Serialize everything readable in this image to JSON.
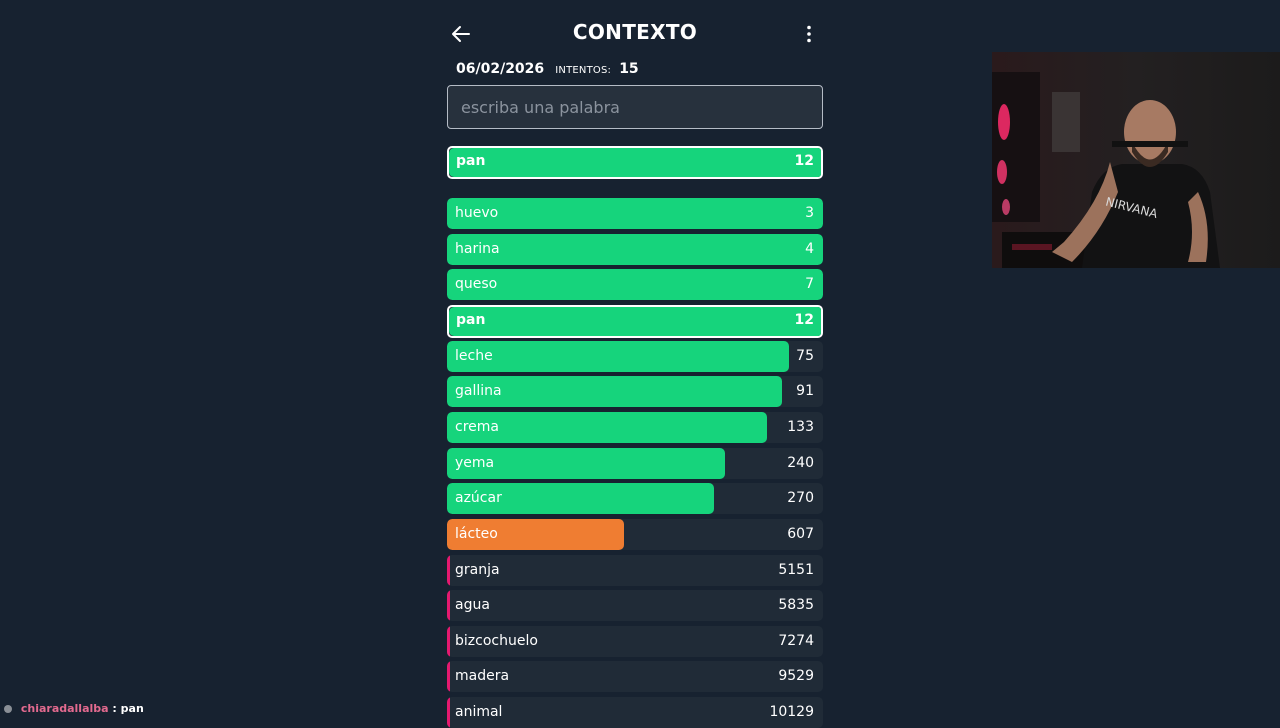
{
  "header": {
    "title": "CONTEXTO",
    "back_icon": "arrow-left-icon",
    "menu_icon": "more-vertical-icon"
  },
  "info": {
    "date": "06/02/2026",
    "attempts_label": "INTENTOS:",
    "attempts_value": "15"
  },
  "search": {
    "placeholder": "escriba una palabra",
    "value": ""
  },
  "last_guess": {
    "word": "pan",
    "rank": "12",
    "color": "#16d47c",
    "fill_fraction": 1.0
  },
  "guesses": [
    {
      "word": "huevo",
      "rank": "3",
      "color": "#16d47c",
      "fill_fraction": 1.0,
      "current": false
    },
    {
      "word": "harina",
      "rank": "4",
      "color": "#16d47c",
      "fill_fraction": 1.0,
      "current": false
    },
    {
      "word": "queso",
      "rank": "7",
      "color": "#16d47c",
      "fill_fraction": 1.0,
      "current": false
    },
    {
      "word": "pan",
      "rank": "12",
      "color": "#16d47c",
      "fill_fraction": 1.0,
      "current": true
    },
    {
      "word": "leche",
      "rank": "75",
      "color": "#16d47c",
      "fill_fraction": 0.91,
      "current": false
    },
    {
      "word": "gallina",
      "rank": "91",
      "color": "#16d47c",
      "fill_fraction": 0.89,
      "current": false
    },
    {
      "word": "crema",
      "rank": "133",
      "color": "#16d47c",
      "fill_fraction": 0.85,
      "current": false
    },
    {
      "word": "yema",
      "rank": "240",
      "color": "#16d47c",
      "fill_fraction": 0.74,
      "current": false
    },
    {
      "word": "azúcar",
      "rank": "270",
      "color": "#16d47c",
      "fill_fraction": 0.71,
      "current": false
    },
    {
      "word": "lácteo",
      "rank": "607",
      "color": "#ef7d32",
      "fill_fraction": 0.47,
      "current": false
    },
    {
      "word": "granja",
      "rank": "5151",
      "color": "#e5196f",
      "fill_fraction": 0.01,
      "current": false
    },
    {
      "word": "agua",
      "rank": "5835",
      "color": "#e5196f",
      "fill_fraction": 0.01,
      "current": false
    },
    {
      "word": "bizcochuelo",
      "rank": "7274",
      "color": "#e5196f",
      "fill_fraction": 0.01,
      "current": false
    },
    {
      "word": "madera",
      "rank": "9529",
      "color": "#e5196f",
      "fill_fraction": 0.01,
      "current": false
    },
    {
      "word": "animal",
      "rank": "10129",
      "color": "#e5196f",
      "fill_fraction": 0.01,
      "current": false
    }
  ],
  "chat": {
    "username": "chiaradallalba",
    "separator": " : ",
    "message": "pan"
  }
}
